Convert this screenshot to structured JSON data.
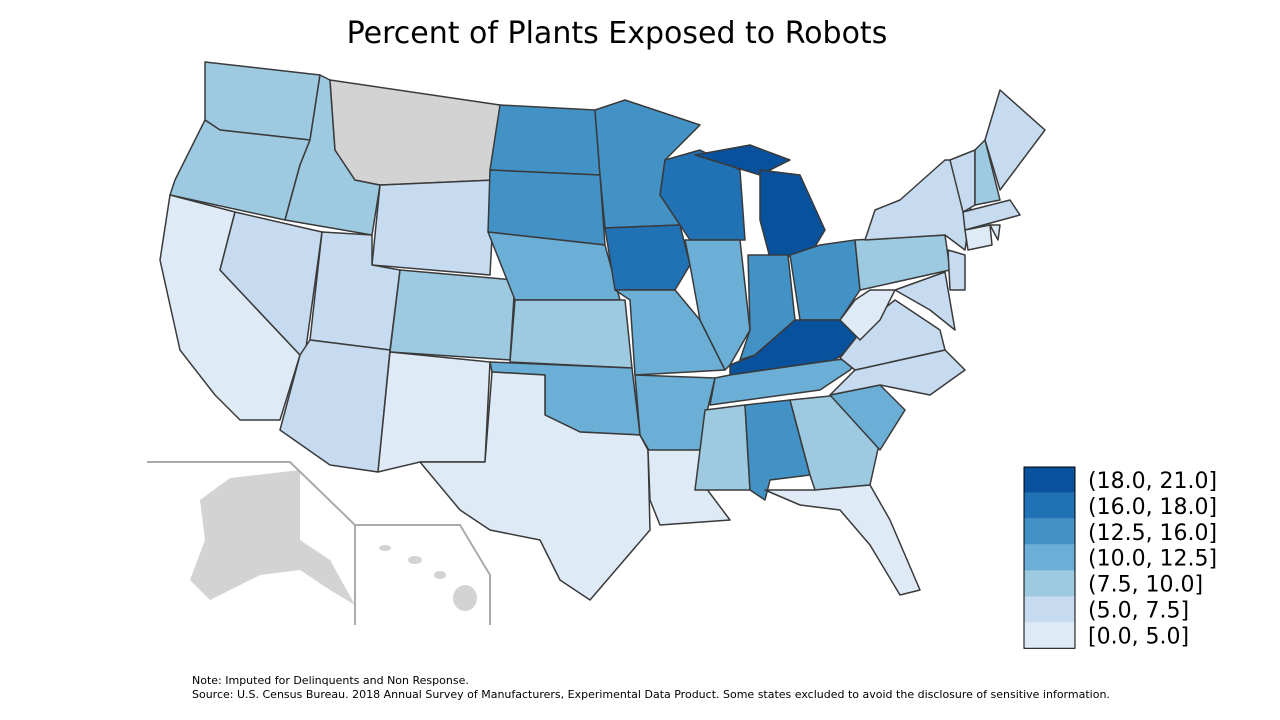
{
  "title": "Percent of Plants Exposed to Robots",
  "legend": {
    "items": [
      {
        "label": "(18.0, 21.0]",
        "color": "#08519c"
      },
      {
        "label": "(16.0, 18.0]",
        "color": "#2171b5"
      },
      {
        "label": "(12.5, 16.0]",
        "color": "#4292c6"
      },
      {
        "label": "(10.0, 12.5]",
        "color": "#6baed6"
      },
      {
        "label": "(7.5, 10.0]",
        "color": "#9ecae1"
      },
      {
        "label": "(5.0, 7.5]",
        "color": "#c6dbef"
      },
      {
        "label": "[0.0, 5.0]",
        "color": "#deebf7"
      }
    ]
  },
  "notes": [
    "Note: Imputed for Delinquents and Non Response.",
    "Source: U.S. Census Bureau. 2018 Annual Survey of Manufacturers, Experimental Data Product. Some states excluded to avoid the disclosure of sensitive information."
  ]
}
